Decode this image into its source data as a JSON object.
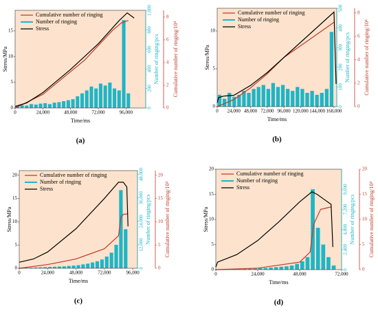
{
  "chart_data": [
    {
      "type": "combo",
      "panel_label": "(a)",
      "xlabel": "Time/ms",
      "ylabel": "Stress/MPa",
      "y2label": "Number of ringing/pcs",
      "y3label": "Cumulative number of ringing/10⁴",
      "xlim": [
        0,
        113000
      ],
      "xticks": [
        0,
        {
          "value": 24000,
          "label": "24,000"
        },
        {
          "value": 48000,
          "label": "48,000"
        },
        {
          "value": 72000,
          "label": "72,000"
        },
        {
          "value": 96000,
          "label": "96,000"
        }
      ],
      "ylim": [
        0,
        19
      ],
      "yticks": [
        0,
        5,
        10,
        15
      ],
      "y2lim": [
        0,
        1000
      ],
      "y2ticks": [
        0,
        200,
        400,
        600,
        800,
        {
          "value": 1000,
          "label": "1,000"
        }
      ],
      "y3lim": [
        0,
        8.6
      ],
      "y3ticks": [
        0,
        2,
        4,
        6,
        8
      ],
      "series": [
        {
          "name": "Cumulative number of ringing",
          "type": "line",
          "axis": "y3",
          "color": "#c0392b",
          "x": [
            0,
            24000,
            48000,
            60000,
            72000,
            84000,
            92000,
            98000
          ],
          "values": [
            0,
            1.2,
            3.2,
            4.2,
            5.5,
            6.8,
            7.5,
            7.7
          ]
        },
        {
          "name": "Number of ringing",
          "type": "bar",
          "axis": "y2",
          "color": "#1fb5c6",
          "x": [
            2000,
            6000,
            10000,
            14000,
            18000,
            22000,
            26000,
            30000,
            34000,
            38000,
            42000,
            46000,
            50000,
            54000,
            58000,
            62000,
            66000,
            70000,
            74000,
            78000,
            82000,
            86000,
            90000,
            94000,
            98000
          ],
          "values": [
            20,
            30,
            25,
            40,
            35,
            45,
            50,
            40,
            55,
            60,
            70,
            80,
            90,
            120,
            150,
            180,
            220,
            200,
            250,
            230,
            260,
            200,
            180,
            900,
            150
          ]
        },
        {
          "name": "Stress",
          "type": "line",
          "axis": "y",
          "color": "#000000",
          "x": [
            0,
            10000,
            24000,
            48000,
            72000,
            90000,
            97000,
            103000
          ],
          "values": [
            0.3,
            1,
            3,
            7.5,
            12.5,
            17,
            18.5,
            17.5
          ]
        }
      ]
    },
    {
      "type": "combo",
      "panel_label": "(b)",
      "xlabel": "Time/ms",
      "ylabel": "Stress/MPa",
      "y2label": "Number of ringing/pcs",
      "y3label": "Cumulative number of ringing/10⁴",
      "xlim": [
        0,
        172000
      ],
      "xticks": [
        0,
        {
          "value": 24000,
          "label": "24,000"
        },
        {
          "value": 48000,
          "label": "48,000"
        },
        {
          "value": 72000,
          "label": "72,000"
        },
        {
          "value": 96000,
          "label": "96,000"
        },
        {
          "value": 120000,
          "label": "120,000"
        },
        {
          "value": 144000,
          "label": "144,000"
        },
        {
          "value": 168000,
          "label": "168,000"
        }
      ],
      "ylim": [
        0,
        13
      ],
      "yticks": [
        0,
        5,
        10
      ],
      "y2lim": [
        0,
        500
      ],
      "y2ticks": [
        0,
        100,
        200,
        300,
        400,
        500
      ],
      "y3lim": [
        0,
        8.4
      ],
      "y3ticks": [
        0,
        2,
        4,
        6,
        8
      ],
      "series": [
        {
          "name": "Cumulative number of ringing",
          "type": "line",
          "axis": "y3",
          "color": "#c0392b",
          "x": [
            0,
            24000,
            48000,
            72000,
            96000,
            120000,
            144000,
            168000
          ],
          "values": [
            0,
            0.6,
            1.6,
            2.8,
            4.2,
            5.2,
            6.2,
            7.2
          ]
        },
        {
          "name": "Number of ringing",
          "type": "bar",
          "axis": "y2",
          "color": "#1fb5c6",
          "x": [
            3500,
            10500,
            17500,
            24500,
            31500,
            38500,
            45500,
            52500,
            59500,
            66500,
            73500,
            80500,
            87500,
            94500,
            101500,
            108500,
            115500,
            122500,
            129500,
            136500,
            143500,
            150500,
            157500,
            164500
          ],
          "values": [
            60,
            40,
            70,
            50,
            60,
            80,
            70,
            90,
            100,
            110,
            90,
            120,
            100,
            110,
            90,
            80,
            100,
            90,
            70,
            80,
            60,
            70,
            90,
            380
          ]
        },
        {
          "name": "Stress",
          "type": "line",
          "axis": "y",
          "color": "#000000",
          "x": [
            0,
            2000,
            10000,
            24000,
            48000,
            72000,
            96000,
            120000,
            144000,
            168000,
            171000
          ],
          "values": [
            0.5,
            1.2,
            1.4,
            1.5,
            2.8,
            4.5,
            6.5,
            8.5,
            10.5,
            12.5,
            3
          ]
        }
      ]
    },
    {
      "type": "combo",
      "panel_label": "(c)",
      "xlabel": "Time/ms",
      "ylabel": "Stress/MPa",
      "y2label": "Number of ringing/pcs",
      "y3label": "Cumulative number of ringing/10⁴",
      "xlim": [
        0,
        100000
      ],
      "xticks": [
        0,
        {
          "value": 24000,
          "label": "24,000"
        },
        {
          "value": 48000,
          "label": "48,000"
        },
        {
          "value": 72000,
          "label": "72,000"
        },
        {
          "value": 96000,
          "label": "96,000"
        }
      ],
      "ylim": [
        0,
        21
      ],
      "yticks": [
        0,
        5,
        10,
        15,
        20
      ],
      "y2lim": [
        0,
        50000
      ],
      "y2ticks": [
        0,
        {
          "value": 12000,
          "label": "12,000"
        },
        {
          "value": 24000,
          "label": "24,000"
        },
        {
          "value": 36000,
          "label": "36,000"
        },
        {
          "value": 48000,
          "label": "48,000"
        }
      ],
      "y3lim": [
        0,
        21
      ],
      "y3ticks": [
        0,
        5,
        10,
        15,
        20
      ],
      "series": [
        {
          "name": "Cumulative number of ringing",
          "type": "line",
          "axis": "y3",
          "color": "#c0392b",
          "x": [
            0,
            24000,
            48000,
            72000,
            84000,
            86000,
            88000,
            92000
          ],
          "values": [
            0,
            0.8,
            2,
            4.2,
            7,
            11,
            11.6,
            11.7
          ]
        },
        {
          "name": "Number of ringing",
          "type": "bar",
          "axis": "y2",
          "color": "#1fb5c6",
          "x": [
            2000,
            6000,
            10000,
            14000,
            18000,
            22000,
            26000,
            30000,
            34000,
            38000,
            42000,
            46000,
            50000,
            54000,
            58000,
            62000,
            66000,
            70000,
            74000,
            78000,
            82000,
            86000,
            90000
          ],
          "values": [
            200,
            300,
            300,
            400,
            500,
            600,
            700,
            800,
            900,
            1000,
            1200,
            1400,
            1600,
            2000,
            2400,
            3000,
            3600,
            4500,
            6000,
            8000,
            12000,
            40000,
            20000
          ]
        },
        {
          "name": "Stress",
          "type": "line",
          "axis": "y",
          "color": "#000000",
          "x": [
            0,
            12000,
            24000,
            48000,
            72000,
            84000,
            88000,
            91000,
            92000
          ],
          "values": [
            1.3,
            2,
            3.5,
            8.5,
            15,
            18.5,
            18.5,
            17.5,
            9
          ]
        }
      ]
    },
    {
      "type": "combo",
      "panel_label": "(d)",
      "xlabel": "Time/ms",
      "ylabel": "Stress/MPa",
      "y2label": "Number of ringing/pcs",
      "y3label": "Cumulative number of ringing/10⁴",
      "xlim": [
        0,
        72000
      ],
      "xticks": [
        0,
        {
          "value": 24000,
          "label": "24,000"
        },
        {
          "value": 48000,
          "label": "48,000"
        },
        {
          "value": 72000,
          "label": "72,000"
        }
      ],
      "ylim": [
        0,
        20
      ],
      "yticks": [
        0,
        5,
        10,
        15,
        20
      ],
      "y2lim": [
        0,
        12000
      ],
      "y2ticks": [
        0,
        {
          "value": 2400,
          "label": "2,400"
        },
        {
          "value": 4800,
          "label": "4,800"
        },
        {
          "value": 7200,
          "label": "7,200"
        },
        {
          "value": 9600,
          "label": "9,600"
        }
      ],
      "y3lim": [
        0,
        20
      ],
      "y3ticks": [
        0,
        5,
        10,
        15,
        20
      ],
      "series": [
        {
          "name": "Cumulative number of ringing",
          "type": "line",
          "axis": "y3",
          "color": "#c0392b",
          "x": [
            0,
            24000,
            48000,
            54000,
            56000,
            60000,
            66000
          ],
          "values": [
            0,
            0.3,
            1.5,
            3.5,
            9,
            12,
            12.5
          ]
        },
        {
          "name": "Number of ringing",
          "type": "bar",
          "axis": "y2",
          "color": "#1fb5c6",
          "x": [
            1500,
            4500,
            7500,
            10500,
            13500,
            16500,
            19500,
            22500,
            25500,
            28500,
            31500,
            34500,
            37500,
            40500,
            43500,
            46500,
            49500,
            52500,
            55500,
            58500,
            61500,
            64500,
            67500
          ],
          "values": [
            50,
            60,
            60,
            80,
            100,
            100,
            120,
            150,
            180,
            200,
            250,
            300,
            350,
            400,
            500,
            700,
            1000,
            1500,
            9600,
            5000,
            3000,
            1500,
            500
          ]
        },
        {
          "name": "Stress",
          "type": "line",
          "axis": "y",
          "color": "#000000",
          "x": [
            0,
            1000,
            12000,
            24000,
            36000,
            48000,
            55000,
            58000,
            62000,
            66000,
            67000
          ],
          "values": [
            0.5,
            1.5,
            3,
            5.8,
            9.5,
            13.5,
            15.5,
            15,
            14,
            13,
            4.5
          ]
        }
      ]
    }
  ]
}
